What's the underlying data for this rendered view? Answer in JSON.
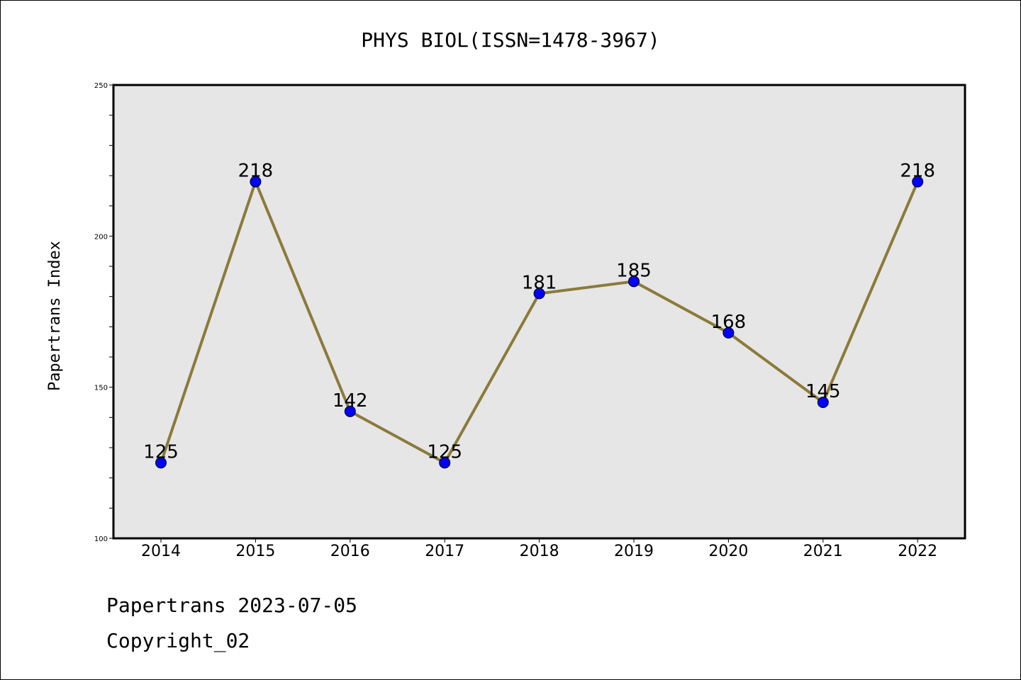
{
  "chart_data": {
    "type": "line",
    "title": "PHYS BIOL(ISSN=1478-3967)",
    "xlabel": "",
    "ylabel": "Papertrans Index",
    "categories": [
      "2014",
      "2015",
      "2016",
      "2017",
      "2018",
      "2019",
      "2020",
      "2021",
      "2022"
    ],
    "values": [
      125,
      218,
      142,
      125,
      181,
      185,
      168,
      145,
      218
    ],
    "data_labels": [
      "125",
      "218",
      "142",
      "125",
      "181",
      "185",
      "168",
      "145",
      "218"
    ],
    "ylim": [
      100,
      250
    ],
    "yticks": [
      100,
      150,
      200,
      250
    ],
    "ytick_labels": [
      "100",
      "150",
      "200",
      "250"
    ],
    "grid": false,
    "legend": "none",
    "colors": {
      "line": "#8B7A3A",
      "marker": "#0000FF",
      "plot_background": "#E6E6E6"
    }
  },
  "footer": {
    "line1": "Papertrans 2023-07-05",
    "line2": "Copyright_02"
  }
}
